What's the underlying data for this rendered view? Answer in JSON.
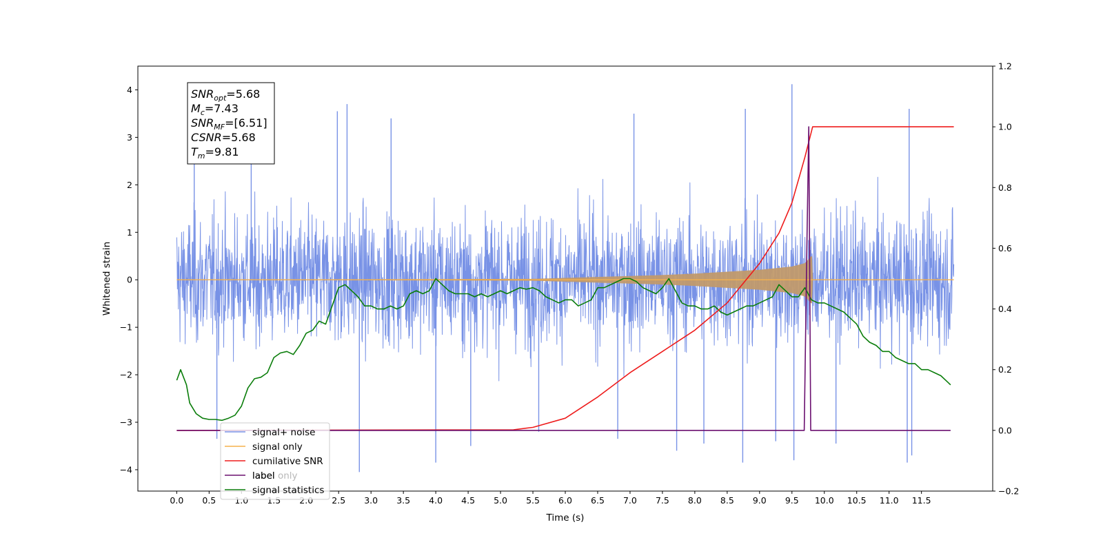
{
  "chart_data": {
    "type": "line",
    "title": "",
    "xlabel": "Time (s)",
    "ylabel": "Whitened strain",
    "y2label": "",
    "xlim": [
      -0.6,
      12.6
    ],
    "ylim": [
      -4.45,
      4.5
    ],
    "y2lim": [
      -0.2,
      1.2
    ],
    "x_ticks": [
      0.0,
      0.5,
      1.0,
      1.5,
      2.0,
      2.5,
      3.0,
      3.5,
      4.0,
      4.5,
      5.0,
      5.5,
      6.0,
      6.5,
      7.0,
      7.5,
      8.0,
      8.5,
      9.0,
      9.5,
      10.0,
      10.5,
      11.0,
      11.5
    ],
    "x_tick_labels": [
      "0.0",
      "0.5",
      "1.0",
      "1.5",
      "2.0",
      "2.5",
      "3.0",
      "3.5",
      "4.0",
      "4.5",
      "5.0",
      "5.5",
      "6.0",
      "6.5",
      "7.0",
      "7.5",
      "8.0",
      "8.5",
      "9.0",
      "9.5",
      "10.0",
      "10.5",
      "11.0",
      "11.5"
    ],
    "y_ticks": [
      -4,
      -3,
      -2,
      -1,
      0,
      1,
      2,
      3,
      4
    ],
    "y_tick_labels": [
      "−4",
      "−3",
      "−2",
      "−1",
      "0",
      "1",
      "2",
      "3",
      "4"
    ],
    "y2_ticks": [
      -0.2,
      0.0,
      0.2,
      0.4,
      0.6,
      0.8,
      1.0,
      1.2
    ],
    "y2_tick_labels": [
      "−0.2",
      "0.0",
      "0.2",
      "0.4",
      "0.6",
      "0.8",
      "1.0",
      "1.2"
    ],
    "grid": false,
    "legend_position": "lower-left",
    "annotation_lines": [
      {
        "base": "SNR",
        "sub": "opt",
        "rest": "=5.68"
      },
      {
        "base": "M",
        "sub": "c",
        "rest": "=7.43"
      },
      {
        "base": "SNR",
        "sub": "MF",
        "rest": "=[6.51]"
      },
      {
        "base": "CSNR",
        "sub": "",
        "rest": "=5.68"
      },
      {
        "base": "T",
        "sub": "m",
        "rest": "=9.81"
      }
    ],
    "series": [
      {
        "name": "signal+ noise",
        "axis": "left",
        "color": "#7892e6",
        "kind": "noise-band",
        "note_range": "approximately -4.0 to 4.1, random noise",
        "x_start": 0.0,
        "x_end": 12.0,
        "spikes": [
          {
            "x": 0.27,
            "y": 3.1
          },
          {
            "x": 0.62,
            "y": -3.35
          },
          {
            "x": 1.15,
            "y": 3.35
          },
          {
            "x": 2.48,
            "y": 3.55
          },
          {
            "x": 2.63,
            "y": 3.7
          },
          {
            "x": 2.82,
            "y": -4.05
          },
          {
            "x": 3.31,
            "y": 3.4
          },
          {
            "x": 4.0,
            "y": -3.85
          },
          {
            "x": 4.54,
            "y": -3.5
          },
          {
            "x": 5.59,
            "y": -3.2
          },
          {
            "x": 6.81,
            "y": -3.35
          },
          {
            "x": 7.06,
            "y": 3.5
          },
          {
            "x": 7.72,
            "y": -3.6
          },
          {
            "x": 8.14,
            "y": -3.45
          },
          {
            "x": 8.74,
            "y": -3.85
          },
          {
            "x": 8.78,
            "y": 3.6
          },
          {
            "x": 9.25,
            "y": -3.4
          },
          {
            "x": 9.5,
            "y": 4.12
          },
          {
            "x": 9.53,
            "y": -3.8
          },
          {
            "x": 10.18,
            "y": -3.45
          },
          {
            "x": 11.28,
            "y": -3.85
          },
          {
            "x": 11.31,
            "y": 3.6
          },
          {
            "x": 11.35,
            "y": -3.7
          }
        ]
      },
      {
        "name": "signal only",
        "axis": "left",
        "color": "#f5b14c",
        "kind": "chirp",
        "x": [
          0.0,
          5.5,
          6.5,
          7.0,
          7.5,
          8.0,
          8.5,
          9.0,
          9.5,
          9.7,
          9.8,
          12.0
        ],
        "amplitude": [
          0.0,
          0.02,
          0.06,
          0.08,
          0.1,
          0.13,
          0.17,
          0.21,
          0.28,
          0.35,
          0.5,
          0.0
        ]
      },
      {
        "name": "cumilative SNR",
        "axis": "right",
        "color": "#ee1b1b",
        "x": [
          0.0,
          5.2,
          5.5,
          6.0,
          6.5,
          7.0,
          7.5,
          8.0,
          8.5,
          9.0,
          9.3,
          9.5,
          9.7,
          9.82,
          12.0
        ],
        "values": [
          0.0,
          0.002,
          0.01,
          0.04,
          0.11,
          0.19,
          0.26,
          0.33,
          0.42,
          0.55,
          0.65,
          0.75,
          0.9,
          1.0,
          1.0
        ]
      },
      {
        "name": "label",
        "axis": "right",
        "color": "#6a0f6f",
        "x": [
          0.0,
          9.69,
          9.73,
          9.76,
          9.79,
          9.82,
          11.95
        ],
        "values": [
          0.0,
          0.0,
          0.6,
          1.0,
          0.0,
          0.0,
          0.0
        ]
      },
      {
        "name": "signal statistics",
        "axis": "right",
        "color": "#0a7d0a",
        "x": [
          0.0,
          0.06,
          0.15,
          0.2,
          0.3,
          0.4,
          0.5,
          0.6,
          0.7,
          0.8,
          0.9,
          1.0,
          1.1,
          1.2,
          1.3,
          1.4,
          1.5,
          1.6,
          1.7,
          1.8,
          1.9,
          2.0,
          2.1,
          2.2,
          2.3,
          2.4,
          2.5,
          2.6,
          2.7,
          2.8,
          2.9,
          3.0,
          3.1,
          3.2,
          3.3,
          3.4,
          3.5,
          3.6,
          3.7,
          3.8,
          3.9,
          4.0,
          4.1,
          4.2,
          4.3,
          4.4,
          4.5,
          4.6,
          4.7,
          4.8,
          4.9,
          5.0,
          5.1,
          5.2,
          5.3,
          5.4,
          5.5,
          5.6,
          5.7,
          5.8,
          5.9,
          6.0,
          6.1,
          6.2,
          6.3,
          6.4,
          6.5,
          6.6,
          6.7,
          6.8,
          6.9,
          7.0,
          7.1,
          7.2,
          7.3,
          7.4,
          7.5,
          7.6,
          7.7,
          7.8,
          7.9,
          8.0,
          8.1,
          8.2,
          8.3,
          8.4,
          8.5,
          8.6,
          8.7,
          8.8,
          8.9,
          9.0,
          9.1,
          9.2,
          9.3,
          9.4,
          9.5,
          9.6,
          9.7,
          9.8,
          9.9,
          10.0,
          10.1,
          10.2,
          10.3,
          10.4,
          10.5,
          10.6,
          10.7,
          10.8,
          10.9,
          11.0,
          11.1,
          11.2,
          11.3,
          11.4,
          11.5,
          11.6,
          11.7,
          11.8,
          11.9,
          11.95
        ],
        "values": [
          0.165,
          0.2,
          0.15,
          0.09,
          0.055,
          0.04,
          0.036,
          0.036,
          0.033,
          0.04,
          0.05,
          0.08,
          0.14,
          0.17,
          0.175,
          0.19,
          0.24,
          0.255,
          0.26,
          0.25,
          0.28,
          0.32,
          0.33,
          0.36,
          0.35,
          0.41,
          0.47,
          0.48,
          0.46,
          0.44,
          0.41,
          0.41,
          0.4,
          0.4,
          0.41,
          0.4,
          0.41,
          0.45,
          0.46,
          0.45,
          0.46,
          0.5,
          0.48,
          0.46,
          0.45,
          0.45,
          0.45,
          0.44,
          0.45,
          0.44,
          0.45,
          0.46,
          0.45,
          0.46,
          0.47,
          0.465,
          0.47,
          0.46,
          0.44,
          0.43,
          0.42,
          0.43,
          0.43,
          0.41,
          0.42,
          0.43,
          0.47,
          0.47,
          0.48,
          0.49,
          0.5,
          0.5,
          0.49,
          0.47,
          0.46,
          0.45,
          0.47,
          0.5,
          0.46,
          0.42,
          0.41,
          0.41,
          0.4,
          0.4,
          0.41,
          0.39,
          0.38,
          0.39,
          0.4,
          0.41,
          0.41,
          0.42,
          0.43,
          0.44,
          0.48,
          0.46,
          0.44,
          0.44,
          0.47,
          0.43,
          0.42,
          0.42,
          0.41,
          0.4,
          0.39,
          0.37,
          0.35,
          0.31,
          0.29,
          0.28,
          0.26,
          0.26,
          0.24,
          0.23,
          0.22,
          0.22,
          0.2,
          0.2,
          0.19,
          0.18,
          0.16,
          0.15
        ]
      },
      {
        "name": "label only",
        "axis": "right",
        "color": "#b8b8b8",
        "legend_only": true
      }
    ]
  }
}
